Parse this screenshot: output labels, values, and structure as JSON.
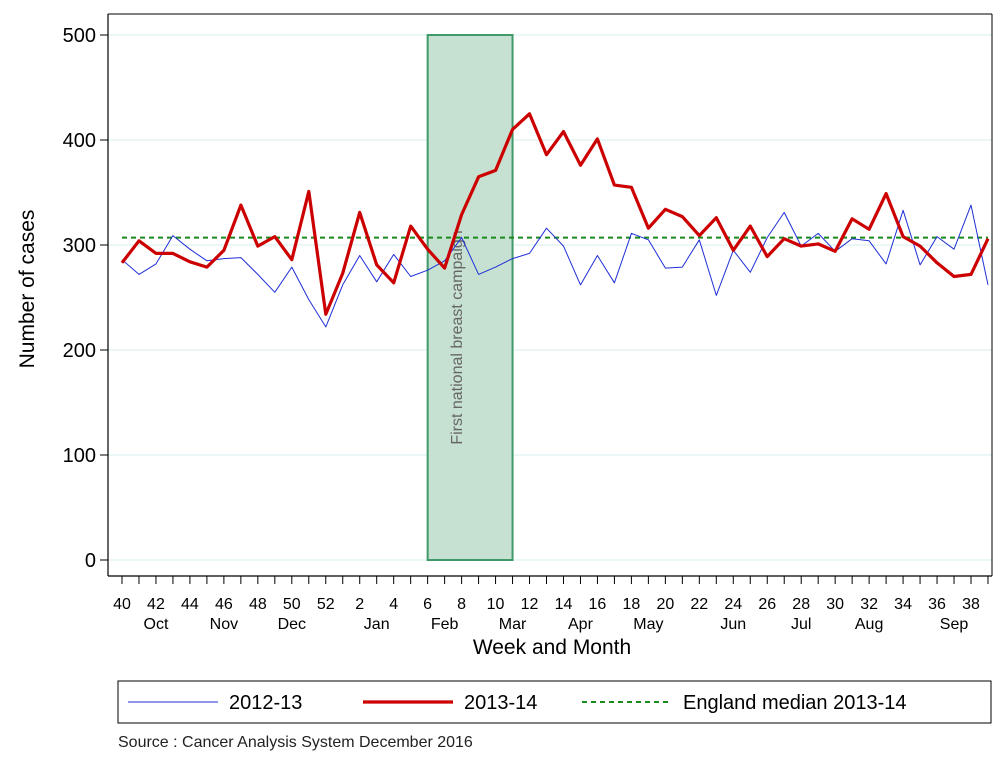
{
  "chart_data": {
    "type": "line",
    "xlabel": "Week and Month",
    "ylabel": "Number of cases",
    "ylim": [
      0,
      500
    ],
    "yticks": [
      0,
      100,
      200,
      300,
      400,
      500
    ],
    "grid": "horizontal",
    "legend_position": "bottom",
    "week_tick_labels": [
      "40",
      "42",
      "44",
      "46",
      "48",
      "50",
      "52",
      "2",
      "4",
      "6",
      "8",
      "10",
      "12",
      "14",
      "16",
      "18",
      "20",
      "22",
      "24",
      "26",
      "28",
      "30",
      "32",
      "34",
      "36",
      "38"
    ],
    "months": [
      {
        "label": "Oct",
        "week": "42"
      },
      {
        "label": "Nov",
        "week": "46"
      },
      {
        "label": "Dec",
        "week": "50"
      },
      {
        "label": "Jan",
        "week": "3"
      },
      {
        "label": "Feb",
        "week": "7"
      },
      {
        "label": "Mar",
        "week": "11"
      },
      {
        "label": "Apr",
        "week": "15"
      },
      {
        "label": "May",
        "week": "19"
      },
      {
        "label": "Jun",
        "week": "24"
      },
      {
        "label": "Jul",
        "week": "28"
      },
      {
        "label": "Aug",
        "week": "32"
      },
      {
        "label": "Sep",
        "week": "37"
      }
    ],
    "x": [
      "40",
      "41",
      "42",
      "43",
      "44",
      "45",
      "46",
      "47",
      "48",
      "49",
      "50",
      "51",
      "52",
      "1",
      "2",
      "3",
      "4",
      "5",
      "6",
      "7",
      "8",
      "9",
      "10",
      "11",
      "12",
      "13",
      "14",
      "15",
      "16",
      "17",
      "18",
      "19",
      "20",
      "21",
      "22",
      "23",
      "24",
      "25",
      "26",
      "27",
      "28",
      "29",
      "30",
      "31",
      "32",
      "33",
      "34",
      "35",
      "36",
      "37",
      "38",
      "39"
    ],
    "series": [
      {
        "name": "2012-13",
        "color": "#1f2fd6",
        "values": [
          286,
          272,
          282,
          309,
          296,
          285,
          287,
          288,
          272,
          255,
          279,
          248,
          222,
          262,
          290,
          265,
          291,
          270,
          276,
          285,
          307,
          272,
          279,
          287,
          292,
          316,
          299,
          262,
          290,
          264,
          311,
          305,
          278,
          279,
          305,
          252,
          295,
          274,
          307,
          331,
          299,
          311,
          294,
          306,
          304,
          282,
          333,
          281,
          308,
          296,
          338,
          262
        ]
      },
      {
        "name": "2013-14",
        "color": "#cc0000",
        "values": [
          283,
          304,
          292,
          292,
          284,
          279,
          295,
          338,
          299,
          308,
          286,
          351,
          234,
          273,
          331,
          281,
          264,
          318,
          296,
          278,
          329,
          365,
          371,
          410,
          425,
          386,
          408,
          376,
          401,
          357,
          355,
          316,
          334,
          327,
          309,
          326,
          295,
          318,
          289,
          306,
          299,
          301,
          294,
          325,
          315,
          349,
          308,
          299,
          283,
          270,
          272,
          306
        ]
      }
    ],
    "reference_line": {
      "name": "England median 2013-14",
      "value": 307,
      "color": "#1a8a1a"
    },
    "annotation": {
      "text": "First national breast campaign",
      "from_week": "6",
      "to_week": "11",
      "ymax": 500,
      "fill": "#c6e0d2",
      "stroke": "#3e9a68"
    }
  },
  "footer": {
    "source": "Source : Cancer Analysis System December 2016"
  }
}
